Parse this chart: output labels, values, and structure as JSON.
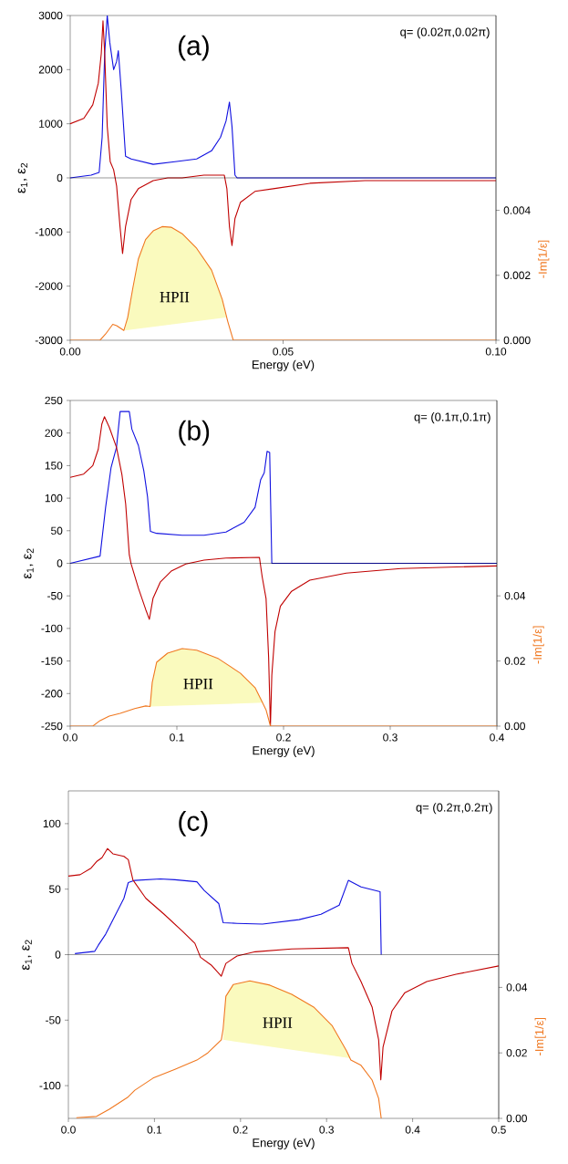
{
  "chart_data": [
    {
      "type": "line",
      "title": "(a)",
      "xlabel": "Energy (eV)",
      "ylabel": "ε$_{1}$, ε$_{2}$",
      "y2label": "-Im[1/ε]",
      "annotations": [
        "q= (0.02π,0.02π)",
        "HPII"
      ],
      "xlim": [
        0,
        0.1
      ],
      "xticks": [
        {
          "value": 0,
          "label": "0.00"
        },
        {
          "value": 0.05,
          "label": "0.05"
        },
        {
          "value": 0.1,
          "label": "0.10"
        }
      ],
      "ylim": [
        -3000,
        3000
      ],
      "yticks": [
        -3000,
        -2000,
        -1000,
        0,
        1000,
        2000,
        3000
      ],
      "y2lim": [
        0,
        0.01
      ],
      "y2ticks": [
        {
          "value": 0,
          "label": "0.000"
        },
        {
          "value": 0.002,
          "label": "0.002"
        },
        {
          "value": 0.004,
          "label": "0.004"
        }
      ],
      "ref_lines": [
        {
          "axis": "y",
          "value": 0,
          "color": "#000000"
        }
      ],
      "series": [
        {
          "type": "area",
          "color": "#fafabe",
          "x": [
            0.0128,
            0.0135,
            0.0147,
            0.016,
            0.0177,
            0.0195,
            0.0216,
            0.0237,
            0.0263,
            0.0297,
            0.0332,
            0.0357,
            0.0366
          ],
          "values": [
            -2820,
            -2580,
            -2040,
            -1500,
            -1140,
            -980,
            -900,
            -910,
            -1030,
            -1300,
            -1700,
            -2240,
            -2580
          ]
        },
        {
          "axis": "y2",
          "color": "#f07820",
          "x": [
            0,
            0.007,
            0.0083,
            0.01,
            0.0109,
            0.0126,
            0.0135,
            0.0147,
            0.016,
            0.0177,
            0.0195,
            0.0216,
            0.0237,
            0.0263,
            0.0297,
            0.0332,
            0.0357,
            0.037,
            0.0383,
            0.0392,
            0.1
          ],
          "values": [
            0,
            0,
            0.00019,
            0.00049,
            0.00045,
            0.0003,
            0.0007,
            0.0016,
            0.0025,
            0.0031,
            0.00337,
            0.0035,
            0.00348,
            0.00328,
            0.00283,
            0.00216,
            0.00126,
            0.00058,
            0,
            0,
            0
          ]
        },
        {
          "color": "#1010e0",
          "x": [
            0,
            0.0049,
            0.0068,
            0.0075,
            0.0081,
            0.0087,
            0.0093,
            0.0102,
            0.0109,
            0.0113,
            0.012,
            0.013,
            0.0143,
            0.0195,
            0.0246,
            0.0297,
            0.0332,
            0.0353,
            0.0366,
            0.0374,
            0.038,
            0.0387,
            0.0392,
            0.1
          ],
          "values": [
            0,
            50,
            100,
            750,
            2300,
            3000,
            2500,
            2000,
            2150,
            2350,
            1600,
            400,
            350,
            250,
            300,
            350,
            500,
            750,
            1050,
            1400,
            950,
            50,
            0,
            0
          ]
        },
        {
          "color": "#c00000",
          "x": [
            0,
            0.0032,
            0.0053,
            0.0066,
            0.0073,
            0.0077,
            0.0081,
            0.0087,
            0.0094,
            0.0102,
            0.0109,
            0.0117,
            0.0123,
            0.013,
            0.0143,
            0.016,
            0.0195,
            0.0229,
            0.0263,
            0.0314,
            0.0362,
            0.0368,
            0.0374,
            0.038,
            0.0387,
            0.04,
            0.0434,
            0.0477,
            0.0563,
            0.0692,
            0.082,
            0.1
          ],
          "values": [
            1000,
            1100,
            1350,
            1750,
            2300,
            2900,
            2300,
            950,
            300,
            150,
            -150,
            -900,
            -1400,
            -900,
            -400,
            -200,
            -50,
            0,
            0,
            50,
            50,
            -200,
            -900,
            -1250,
            -750,
            -450,
            -250,
            -200,
            -100,
            -50,
            -50,
            -50
          ]
        }
      ]
    },
    {
      "type": "line",
      "title": "(b)",
      "xlabel": "Energy (eV)",
      "ylabel": "ε$_{1}$, ε$_{2}$",
      "y2label": "-Im[1/ε]",
      "annotations": [
        "q= (0.1π,0.1π)",
        "HPII"
      ],
      "xlim": [
        0,
        0.4
      ],
      "xticks": [
        {
          "value": 0,
          "label": "0.0"
        },
        {
          "value": 0.1,
          "label": "0.1"
        },
        {
          "value": 0.2,
          "label": "0.2"
        },
        {
          "value": 0.3,
          "label": "0.3"
        },
        {
          "value": 0.4,
          "label": "0.4"
        }
      ],
      "ylim": [
        -250,
        250
      ],
      "yticks": [
        -250,
        -200,
        -150,
        -100,
        -50,
        0,
        50,
        100,
        150,
        200,
        250
      ],
      "y2lim": [
        0,
        0.1
      ],
      "y2ticks": [
        {
          "value": 0,
          "label": "0.00"
        },
        {
          "value": 0.02,
          "label": "0.02"
        },
        {
          "value": 0.04,
          "label": "0.04"
        }
      ],
      "ref_lines": [
        {
          "axis": "y",
          "value": 0,
          "color": "#000000"
        }
      ],
      "series": [
        {
          "type": "area",
          "color": "#fafabe",
          "x": [
            0.0749,
            0.0769,
            0.081,
            0.0913,
            0.105,
            0.1186,
            0.139,
            0.1597,
            0.1733,
            0.181
          ],
          "values": [
            -220,
            -183,
            -152,
            -138,
            -131,
            -134,
            -147,
            -169,
            -191,
            -214
          ]
        },
        {
          "axis": "y2",
          "color": "#f07820",
          "x": [
            0,
            0.0212,
            0.028,
            0.0366,
            0.0468,
            0.0605,
            0.0708,
            0.0749,
            0.0769,
            0.081,
            0.0913,
            0.105,
            0.1186,
            0.139,
            0.1597,
            0.1733,
            0.1785,
            0.1836,
            0.1877,
            0.4
          ],
          "values": [
            0,
            0,
            0.0017,
            0.0031,
            0.0039,
            0.0054,
            0.0062,
            0.006,
            0.0134,
            0.0196,
            0.0224,
            0.0238,
            0.0233,
            0.0207,
            0.0162,
            0.0118,
            0.0084,
            0.005,
            0,
            0
          ]
        },
        {
          "color": "#1010e0",
          "x": [
            0,
            0.028,
            0.0332,
            0.0383,
            0.0434,
            0.0468,
            0.0554,
            0.0578,
            0.0639,
            0.069,
            0.0725,
            0.0752,
            0.081,
            0.105,
            0.1255,
            0.146,
            0.1631,
            0.1733,
            0.1785,
            0.1819,
            0.1846,
            0.187,
            0.189,
            0.4
          ],
          "values": [
            0,
            11,
            86,
            147,
            178,
            233,
            233,
            206,
            181,
            142,
            102,
            49,
            46,
            43,
            43,
            48,
            63,
            86,
            128,
            139,
            172,
            170,
            0,
            0
          ]
        },
        {
          "color": "#c00000",
          "x": [
            0,
            0.0126,
            0.0212,
            0.0263,
            0.0297,
            0.0321,
            0.0366,
            0.0434,
            0.0485,
            0.052,
            0.0554,
            0.0571,
            0.0639,
            0.0708,
            0.0742,
            0.0776,
            0.0844,
            0.0947,
            0.1084,
            0.1255,
            0.146,
            0.1774,
            0.18,
            0.1836,
            0.186,
            0.1877,
            0.189,
            0.192,
            0.197,
            0.2075,
            0.2246,
            0.2588,
            0.31,
            0.4
          ],
          "values": [
            132,
            137,
            150,
            175,
            214,
            225,
            209,
            178,
            136,
            91,
            13,
            -1,
            -38,
            -71,
            -86,
            -54,
            -29,
            -12,
            -1,
            5,
            8,
            9,
            -21,
            -54,
            -144,
            -250,
            -172,
            -105,
            -66,
            -43,
            -26,
            -15,
            -8,
            -4
          ]
        }
      ]
    },
    {
      "type": "line",
      "title": "(c)",
      "xlabel": "Energy (eV)",
      "ylabel": "ε$_{1}$, ε$_{2}$",
      "y2label": "-Im[1/ε]",
      "annotations": [
        "q= (0.2π,0.2π)",
        "HPII"
      ],
      "xlim": [
        0,
        0.5
      ],
      "xticks": [
        {
          "value": 0,
          "label": "0.0"
        },
        {
          "value": 0.1,
          "label": "0.1"
        },
        {
          "value": 0.2,
          "label": "0.2"
        },
        {
          "value": 0.3,
          "label": "0.3"
        },
        {
          "value": 0.4,
          "label": "0.4"
        },
        {
          "value": 0.5,
          "label": "0.5"
        }
      ],
      "ylim": [
        -125,
        125
      ],
      "yticks": [
        -100,
        -50,
        0,
        50,
        100
      ],
      "y2lim": [
        0,
        0.1
      ],
      "y2ticks": [
        {
          "value": 0,
          "label": "0.00"
        },
        {
          "value": 0.02,
          "label": "0.02"
        },
        {
          "value": 0.04,
          "label": "0.04"
        }
      ],
      "ref_lines": [
        {
          "axis": "y",
          "value": 0,
          "color": "#000000"
        }
      ],
      "series": [
        {
          "type": "area",
          "color": "#fafabe",
          "x": [
            0.1798,
            0.183,
            0.1917,
            0.2108,
            0.234,
            0.2595,
            0.285,
            0.3062,
            0.3232,
            0.3274
          ],
          "values": [
            -65,
            -32,
            -23,
            -20,
            -23,
            -30,
            -40,
            -54,
            -74,
            -79
          ]
        },
        {
          "axis": "y2",
          "color": "#f07820",
          "x": [
            0.0093,
            0.0327,
            0.0475,
            0.0687,
            0.0772,
            0.0984,
            0.1238,
            0.1493,
            0.162,
            0.1777,
            0.1798,
            0.183,
            0.1917,
            0.2108,
            0.234,
            0.2595,
            0.285,
            0.3062,
            0.3232,
            0.3282,
            0.34,
            0.3529,
            0.3605,
            0.3635
          ],
          "values": [
            0.0002,
            0.0006,
            0.0028,
            0.0064,
            0.0086,
            0.0123,
            0.015,
            0.0178,
            0.02,
            0.024,
            0.0273,
            0.0373,
            0.0409,
            0.042,
            0.0407,
            0.0379,
            0.034,
            0.0284,
            0.0206,
            0.0178,
            0.0162,
            0.0117,
            0.0061,
            0
          ]
        },
        {
          "color": "#1010e0",
          "x": [
            0.0076,
            0.0305,
            0.0348,
            0.0433,
            0.0475,
            0.056,
            0.0645,
            0.0696,
            0.0772,
            0.1069,
            0.1238,
            0.1493,
            0.1578,
            0.1747,
            0.1798,
            0.196,
            0.2256,
            0.268,
            0.2935,
            0.3147,
            0.3253,
            0.34,
            0.3622,
            0.3635
          ],
          "values": [
            0.8,
            2.5,
            7.2,
            15.6,
            21,
            32,
            43,
            55,
            56.7,
            57.8,
            57.2,
            55.6,
            49,
            39,
            24.4,
            23.9,
            23.3,
            26.7,
            30.8,
            37.8,
            56.7,
            51.7,
            48,
            0
          ]
        },
        {
          "color": "#c00000",
          "x": [
            0,
            0.0136,
            0.0263,
            0.0327,
            0.039,
            0.0454,
            0.0517,
            0.0645,
            0.0696,
            0.075,
            0.09,
            0.111,
            0.1323,
            0.147,
            0.1535,
            0.166,
            0.1777,
            0.183,
            0.196,
            0.2171,
            0.2595,
            0.3253,
            0.3295,
            0.34,
            0.3529,
            0.3605,
            0.363,
            0.3656,
            0.376,
            0.391,
            0.4165,
            0.4504,
            0.5
          ],
          "values": [
            60,
            61,
            66,
            71,
            74,
            81,
            77,
            75,
            72.5,
            57,
            43,
            31,
            18,
            8.6,
            -2,
            -8,
            -16.4,
            -6.7,
            -1,
            2.2,
            4.4,
            5.3,
            -6.7,
            -20.6,
            -40,
            -65,
            -95.6,
            -70.6,
            -43,
            -29,
            -20.6,
            -15,
            -8.6
          ]
        }
      ]
    }
  ]
}
